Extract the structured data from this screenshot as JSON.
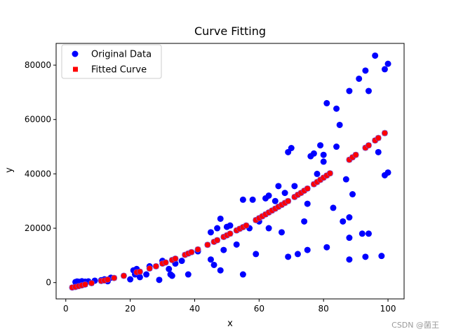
{
  "chart_data": {
    "type": "scatter",
    "title": "Curve Fitting",
    "xlabel": "x",
    "ylabel": "y",
    "xlim": [
      -3,
      105
    ],
    "ylim": [
      -6000,
      88000
    ],
    "xticks": [
      0,
      20,
      40,
      60,
      80,
      100
    ],
    "yticks": [
      0,
      20000,
      40000,
      60000,
      80000
    ],
    "legend_position": "top-left",
    "grid": false,
    "series": [
      {
        "name": "Original Data",
        "marker": "circle",
        "color": "#0000ff",
        "points": [
          [
            3,
            200
          ],
          [
            3.5,
            400
          ],
          [
            4,
            300
          ],
          [
            5,
            500
          ],
          [
            6,
            350
          ],
          [
            7,
            450
          ],
          [
            9,
            700
          ],
          [
            11,
            900
          ],
          [
            12,
            1200
          ],
          [
            13,
            500
          ],
          [
            14,
            1800
          ],
          [
            20,
            1200
          ],
          [
            21,
            4500
          ],
          [
            21.5,
            3000
          ],
          [
            22,
            5000
          ],
          [
            23,
            2000
          ],
          [
            25,
            3000
          ],
          [
            26,
            6000
          ],
          [
            29,
            1000
          ],
          [
            30,
            8000
          ],
          [
            32,
            5000
          ],
          [
            32.5,
            3000
          ],
          [
            33,
            2500
          ],
          [
            34,
            7000
          ],
          [
            36,
            8000
          ],
          [
            38,
            3000
          ],
          [
            41,
            11500
          ],
          [
            45,
            18500
          ],
          [
            45,
            8500
          ],
          [
            46,
            6500
          ],
          [
            47,
            20000
          ],
          [
            48,
            23500
          ],
          [
            48,
            4500
          ],
          [
            49,
            12000
          ],
          [
            50,
            20500
          ],
          [
            51,
            21000
          ],
          [
            53,
            14000
          ],
          [
            55,
            3000
          ],
          [
            55,
            30500
          ],
          [
            57,
            20000
          ],
          [
            58,
            30500
          ],
          [
            59,
            10500
          ],
          [
            60,
            22500
          ],
          [
            62,
            31000
          ],
          [
            63,
            32000
          ],
          [
            63,
            20000
          ],
          [
            65,
            30000
          ],
          [
            66,
            35500
          ],
          [
            67,
            18500
          ],
          [
            68,
            33000
          ],
          [
            69,
            9500
          ],
          [
            69,
            48000
          ],
          [
            70,
            49500
          ],
          [
            71,
            35500
          ],
          [
            72,
            10500
          ],
          [
            74,
            22500
          ],
          [
            75,
            12000
          ],
          [
            75,
            29000
          ],
          [
            76,
            46500
          ],
          [
            77,
            47500
          ],
          [
            78,
            40000
          ],
          [
            79,
            50500
          ],
          [
            80,
            47000
          ],
          [
            80,
            44500
          ],
          [
            81,
            66000
          ],
          [
            81,
            13000
          ],
          [
            83,
            27500
          ],
          [
            84,
            64000
          ],
          [
            85,
            58000
          ],
          [
            84,
            50000
          ],
          [
            86,
            22500
          ],
          [
            87,
            38000
          ],
          [
            88,
            70500
          ],
          [
            88,
            24000
          ],
          [
            88,
            16500
          ],
          [
            88,
            8500
          ],
          [
            89,
            32500
          ],
          [
            91,
            75000
          ],
          [
            92,
            18000
          ],
          [
            93,
            78000
          ],
          [
            93,
            9500
          ],
          [
            94,
            70500
          ],
          [
            94,
            18000
          ],
          [
            96,
            83500
          ],
          [
            97,
            48000
          ],
          [
            98,
            9800
          ],
          [
            99,
            78500
          ],
          [
            100,
            80500
          ],
          [
            99,
            39500
          ],
          [
            100,
            40500
          ]
        ]
      },
      {
        "name": "Fitted Curve",
        "marker": "square",
        "color": "#ff0000",
        "points": [
          [
            2,
            -1800
          ],
          [
            3,
            -1600
          ],
          [
            4,
            -1300
          ],
          [
            5,
            -1000
          ],
          [
            6,
            -700
          ],
          [
            8,
            -200
          ],
          [
            11,
            600
          ],
          [
            12,
            800
          ],
          [
            13,
            1100
          ],
          [
            15,
            1700
          ],
          [
            18,
            2500
          ],
          [
            22,
            3800
          ],
          [
            23,
            4000
          ],
          [
            26,
            5200
          ],
          [
            28,
            6000
          ],
          [
            30,
            7000
          ],
          [
            31,
            7400
          ],
          [
            33,
            8300
          ],
          [
            34,
            8800
          ],
          [
            37,
            10200
          ],
          [
            38,
            10700
          ],
          [
            39,
            11200
          ],
          [
            41,
            12200
          ],
          [
            44,
            13900
          ],
          [
            46,
            15000
          ],
          [
            47,
            15600
          ],
          [
            49,
            16800
          ],
          [
            50,
            17400
          ],
          [
            51,
            18000
          ],
          [
            53,
            19200
          ],
          [
            54,
            19800
          ],
          [
            55,
            20400
          ],
          [
            56,
            21000
          ],
          [
            59,
            23000
          ],
          [
            60,
            23700
          ],
          [
            61,
            24400
          ],
          [
            62,
            25100
          ],
          [
            63,
            25800
          ],
          [
            64,
            26500
          ],
          [
            65,
            27200
          ],
          [
            66,
            27900
          ],
          [
            67,
            28600
          ],
          [
            68,
            29300
          ],
          [
            69,
            30000
          ],
          [
            71,
            31500
          ],
          [
            72,
            32300
          ],
          [
            73,
            33000
          ],
          [
            74,
            33800
          ],
          [
            75,
            34600
          ],
          [
            77,
            36200
          ],
          [
            78,
            37000
          ],
          [
            79,
            37800
          ],
          [
            80,
            38600
          ],
          [
            81,
            39400
          ],
          [
            82,
            40200
          ],
          [
            88,
            45200
          ],
          [
            89,
            46100
          ],
          [
            90,
            47000
          ],
          [
            93,
            49600
          ],
          [
            94,
            50500
          ],
          [
            96,
            52300
          ],
          [
            97,
            53200
          ],
          [
            99,
            55000
          ]
        ]
      }
    ]
  },
  "watermark": "CSDN @菌王"
}
